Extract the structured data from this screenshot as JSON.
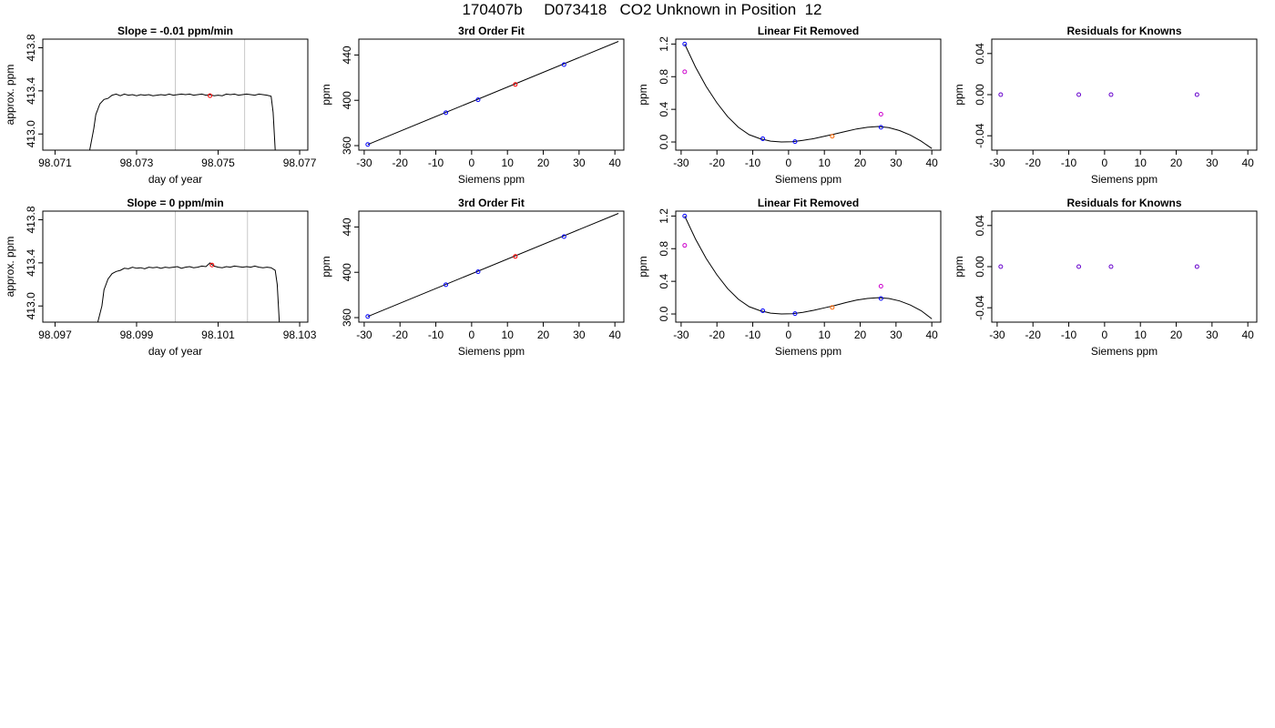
{
  "page_title": "170407b     D073418   CO2 Unknown in Position  12",
  "chart_data": [
    {
      "type": "line",
      "title": "Slope =  -0.01  ppm/min",
      "xlabel": "day of year",
      "ylabel": "approx. ppm",
      "xlim": [
        98.0707,
        98.0772
      ],
      "ylim": [
        412.85,
        413.88
      ],
      "xticks": [
        "98.071",
        "98.073",
        "98.075",
        "98.077"
      ],
      "yticks": [
        "413.0",
        "413.4",
        "413.8"
      ],
      "vlines": [
        98.07395,
        98.07565
      ],
      "vline_color": "#c8c8c8",
      "line_color": "#000000",
      "trace": [
        [
          98.07185,
          412.85
        ],
        [
          98.07195,
          413.05
        ],
        [
          98.072,
          413.18
        ],
        [
          98.0721,
          413.28
        ],
        [
          98.0722,
          413.32
        ],
        [
          98.0723,
          413.33
        ],
        [
          98.0724,
          413.36
        ],
        [
          98.0725,
          413.37
        ],
        [
          98.0726,
          413.355
        ],
        [
          98.0727,
          413.37
        ],
        [
          98.0728,
          413.36
        ],
        [
          98.0729,
          413.365
        ],
        [
          98.073,
          413.355
        ],
        [
          98.0731,
          413.365
        ],
        [
          98.0732,
          413.36
        ],
        [
          98.0733,
          413.365
        ],
        [
          98.0734,
          413.355
        ],
        [
          98.0735,
          413.36
        ],
        [
          98.0736,
          413.365
        ],
        [
          98.0737,
          413.36
        ],
        [
          98.0738,
          413.37
        ],
        [
          98.0739,
          413.36
        ],
        [
          98.074,
          413.365
        ],
        [
          98.0741,
          413.37
        ],
        [
          98.0742,
          413.365
        ],
        [
          98.0743,
          413.37
        ],
        [
          98.0744,
          413.36
        ],
        [
          98.0745,
          413.365
        ],
        [
          98.0746,
          413.37
        ],
        [
          98.0747,
          413.36
        ],
        [
          98.0748,
          413.365
        ],
        [
          98.0749,
          413.355
        ],
        [
          98.075,
          413.36
        ],
        [
          98.0751,
          413.355
        ],
        [
          98.0752,
          413.37
        ],
        [
          98.0753,
          413.365
        ],
        [
          98.0754,
          413.37
        ],
        [
          98.0755,
          413.36
        ],
        [
          98.0756,
          413.365
        ],
        [
          98.0757,
          413.37
        ],
        [
          98.0758,
          413.365
        ],
        [
          98.0759,
          413.36
        ],
        [
          98.076,
          413.37
        ],
        [
          98.0761,
          413.365
        ],
        [
          98.0762,
          413.36
        ],
        [
          98.0763,
          413.35
        ],
        [
          98.07635,
          413.2
        ],
        [
          98.0764,
          412.85
        ]
      ],
      "markers": [
        {
          "x": 98.0748,
          "y": 413.355,
          "color": "#ff0000"
        }
      ]
    },
    {
      "type": "scatter",
      "title": "3rd Order Fit",
      "xlabel": "Siemens ppm",
      "ylabel": "ppm",
      "xlim": [
        -31.5,
        42.5
      ],
      "ylim": [
        356,
        454
      ],
      "xticks": [
        "-30",
        "-20",
        "-10",
        "0",
        "10",
        "20",
        "30",
        "40"
      ],
      "yticks": [
        "360",
        "400",
        "440"
      ],
      "fit_line": [
        [
          -29,
          361
        ],
        [
          41,
          452
        ]
      ],
      "line_color": "#000000",
      "points": [
        {
          "x": -29,
          "y": 361,
          "color": "#0000ff"
        },
        {
          "x": -7.2,
          "y": 389,
          "color": "#0000ff"
        },
        {
          "x": 1.8,
          "y": 400.5,
          "color": "#0000ff"
        },
        {
          "x": 12.2,
          "y": 414,
          "color": "#ff0000"
        },
        {
          "x": 25.8,
          "y": 431.5,
          "color": "#0000ff"
        }
      ]
    },
    {
      "type": "scatter",
      "title": "Linear Fit Removed",
      "xlabel": "Siemens ppm",
      "ylabel": "ppm",
      "xlim": [
        -31.5,
        42.5
      ],
      "ylim": [
        -0.1,
        1.26
      ],
      "xticks": [
        "-30",
        "-20",
        "-10",
        "0",
        "10",
        "20",
        "30",
        "40"
      ],
      "yticks": [
        "0.0",
        "0.4",
        "0.8",
        "1.2"
      ],
      "curve": [
        [
          -29,
          1.2
        ],
        [
          -26,
          0.92
        ],
        [
          -23,
          0.68
        ],
        [
          -20,
          0.48
        ],
        [
          -17,
          0.31
        ],
        [
          -14,
          0.18
        ],
        [
          -11,
          0.09
        ],
        [
          -8,
          0.04
        ],
        [
          -5,
          0.01
        ],
        [
          -2,
          0.0
        ],
        [
          1,
          0.003
        ],
        [
          4,
          0.02
        ],
        [
          7,
          0.04
        ],
        [
          10,
          0.07
        ],
        [
          13,
          0.1
        ],
        [
          16,
          0.13
        ],
        [
          19,
          0.16
        ],
        [
          22,
          0.18
        ],
        [
          25,
          0.19
        ],
        [
          28,
          0.175
        ],
        [
          31,
          0.14
        ],
        [
          34,
          0.085
        ],
        [
          37,
          0.01
        ],
        [
          40,
          -0.08
        ]
      ],
      "line_color": "#000000",
      "points": [
        {
          "x": -29,
          "y": 0.86,
          "color": "#cc00cc"
        },
        {
          "x": -29,
          "y": 1.2,
          "color": "#0000ff"
        },
        {
          "x": -7.2,
          "y": 0.04,
          "color": "#0000ff"
        },
        {
          "x": 1.8,
          "y": 0.005,
          "color": "#0000ff"
        },
        {
          "x": 12.2,
          "y": 0.07,
          "color": "#ff6600"
        },
        {
          "x": 25.8,
          "y": 0.34,
          "color": "#cc00cc"
        },
        {
          "x": 25.8,
          "y": 0.18,
          "color": "#0000ff"
        }
      ]
    },
    {
      "type": "scatter",
      "title": "Residuals for Knowns",
      "xlabel": "Siemens ppm",
      "ylabel": "ppm",
      "xlim": [
        -31.5,
        42.5
      ],
      "ylim": [
        -0.054,
        0.054
      ],
      "xticks": [
        "-30",
        "-20",
        "-10",
        "0",
        "10",
        "20",
        "30",
        "40"
      ],
      "yticks": [
        "-0.04",
        "0.00",
        "0.04"
      ],
      "points": [
        {
          "x": -29,
          "y": 0,
          "color": "#6600cc"
        },
        {
          "x": -7.2,
          "y": 0,
          "color": "#6600cc"
        },
        {
          "x": 1.8,
          "y": 0,
          "color": "#6600cc"
        },
        {
          "x": 25.8,
          "y": 0,
          "color": "#6600cc"
        }
      ]
    },
    {
      "type": "line",
      "title": "Slope =  0  ppm/min",
      "xlabel": "day of year",
      "ylabel": "approx. ppm",
      "xlim": [
        98.0967,
        98.1032
      ],
      "ylim": [
        412.85,
        413.88
      ],
      "xticks": [
        "98.097",
        "98.099",
        "98.101",
        "98.103"
      ],
      "yticks": [
        "413.0",
        "413.4",
        "413.8"
      ],
      "vlines": [
        98.09995,
        98.10172
      ],
      "vline_color": "#c8c8c8",
      "line_color": "#000000",
      "trace": [
        [
          98.09805,
          412.85
        ],
        [
          98.09815,
          413.0
        ],
        [
          98.0982,
          413.15
        ],
        [
          98.0983,
          413.25
        ],
        [
          98.0984,
          413.3
        ],
        [
          98.0985,
          413.32
        ],
        [
          98.0986,
          413.33
        ],
        [
          98.0987,
          413.35
        ],
        [
          98.0988,
          413.345
        ],
        [
          98.0989,
          413.36
        ],
        [
          98.099,
          413.35
        ],
        [
          98.0991,
          413.355
        ],
        [
          98.0992,
          413.345
        ],
        [
          98.0993,
          413.36
        ],
        [
          98.0994,
          413.355
        ],
        [
          98.0995,
          413.36
        ],
        [
          98.0996,
          413.35
        ],
        [
          98.0997,
          413.36
        ],
        [
          98.0998,
          413.355
        ],
        [
          98.0999,
          413.36
        ],
        [
          98.1,
          413.365
        ],
        [
          98.1001,
          413.35
        ],
        [
          98.1002,
          413.36
        ],
        [
          98.1003,
          413.365
        ],
        [
          98.1004,
          413.355
        ],
        [
          98.1005,
          413.36
        ],
        [
          98.1006,
          413.37
        ],
        [
          98.1007,
          413.365
        ],
        [
          98.1008,
          413.4
        ],
        [
          98.1009,
          413.37
        ],
        [
          98.101,
          413.36
        ],
        [
          98.1011,
          413.355
        ],
        [
          98.1012,
          413.365
        ],
        [
          98.1013,
          413.36
        ],
        [
          98.1014,
          413.37
        ],
        [
          98.1015,
          413.365
        ],
        [
          98.1016,
          413.36
        ],
        [
          98.1017,
          413.365
        ],
        [
          98.1018,
          413.36
        ],
        [
          98.1019,
          413.37
        ],
        [
          98.102,
          413.36
        ],
        [
          98.1021,
          413.355
        ],
        [
          98.1022,
          413.36
        ],
        [
          98.1023,
          413.355
        ],
        [
          98.1024,
          413.33
        ],
        [
          98.10245,
          413.2
        ],
        [
          98.1025,
          412.85
        ]
      ],
      "markers": [
        {
          "x": 98.10085,
          "y": 413.38,
          "color": "#ff0000"
        }
      ]
    },
    {
      "type": "scatter",
      "title": "3rd Order Fit",
      "xlabel": "Siemens ppm",
      "ylabel": "ppm",
      "xlim": [
        -31.5,
        42.5
      ],
      "ylim": [
        356,
        454
      ],
      "xticks": [
        "-30",
        "-20",
        "-10",
        "0",
        "10",
        "20",
        "30",
        "40"
      ],
      "yticks": [
        "360",
        "400",
        "440"
      ],
      "fit_line": [
        [
          -29,
          361
        ],
        [
          41,
          452
        ]
      ],
      "line_color": "#000000",
      "points": [
        {
          "x": -29,
          "y": 361,
          "color": "#0000ff"
        },
        {
          "x": -7.2,
          "y": 389,
          "color": "#0000ff"
        },
        {
          "x": 1.8,
          "y": 400.5,
          "color": "#0000ff"
        },
        {
          "x": 12.2,
          "y": 414,
          "color": "#ff0000"
        },
        {
          "x": 25.8,
          "y": 431.5,
          "color": "#0000ff"
        }
      ]
    },
    {
      "type": "scatter",
      "title": "Linear Fit Removed",
      "xlabel": "Siemens ppm",
      "ylabel": "ppm",
      "xlim": [
        -31.5,
        42.5
      ],
      "ylim": [
        -0.1,
        1.26
      ],
      "xticks": [
        "-30",
        "-20",
        "-10",
        "0",
        "10",
        "20",
        "30",
        "40"
      ],
      "yticks": [
        "0.0",
        "0.4",
        "0.8",
        "1.2"
      ],
      "curve": [
        [
          -29,
          1.2
        ],
        [
          -26,
          0.92
        ],
        [
          -23,
          0.68
        ],
        [
          -20,
          0.48
        ],
        [
          -17,
          0.31
        ],
        [
          -14,
          0.18
        ],
        [
          -11,
          0.09
        ],
        [
          -8,
          0.04
        ],
        [
          -5,
          0.01
        ],
        [
          -2,
          0.0
        ],
        [
          1,
          0.003
        ],
        [
          4,
          0.02
        ],
        [
          7,
          0.045
        ],
        [
          10,
          0.075
        ],
        [
          13,
          0.105
        ],
        [
          16,
          0.14
        ],
        [
          19,
          0.17
        ],
        [
          22,
          0.19
        ],
        [
          25,
          0.2
        ],
        [
          28,
          0.19
        ],
        [
          31,
          0.16
        ],
        [
          34,
          0.11
        ],
        [
          37,
          0.04
        ],
        [
          40,
          -0.06
        ]
      ],
      "line_color": "#000000",
      "points": [
        {
          "x": -29,
          "y": 0.84,
          "color": "#cc00cc"
        },
        {
          "x": -29,
          "y": 1.2,
          "color": "#0000ff"
        },
        {
          "x": -7.2,
          "y": 0.04,
          "color": "#0000ff"
        },
        {
          "x": 1.8,
          "y": 0.005,
          "color": "#0000ff"
        },
        {
          "x": 12.2,
          "y": 0.08,
          "color": "#ff6600"
        },
        {
          "x": 25.8,
          "y": 0.34,
          "color": "#cc00cc"
        },
        {
          "x": 25.8,
          "y": 0.19,
          "color": "#0000ff"
        }
      ]
    },
    {
      "type": "scatter",
      "title": "Residuals for Knowns",
      "xlabel": "Siemens ppm",
      "ylabel": "ppm",
      "xlim": [
        -31.5,
        42.5
      ],
      "ylim": [
        -0.054,
        0.054
      ],
      "xticks": [
        "-30",
        "-20",
        "-10",
        "0",
        "10",
        "20",
        "30",
        "40"
      ],
      "yticks": [
        "-0.04",
        "0.00",
        "0.04"
      ],
      "points": [
        {
          "x": -29,
          "y": 0,
          "color": "#6600cc"
        },
        {
          "x": -7.2,
          "y": 0,
          "color": "#6600cc"
        },
        {
          "x": 1.8,
          "y": 0,
          "color": "#6600cc"
        },
        {
          "x": 25.8,
          "y": 0,
          "color": "#6600cc"
        }
      ]
    }
  ]
}
